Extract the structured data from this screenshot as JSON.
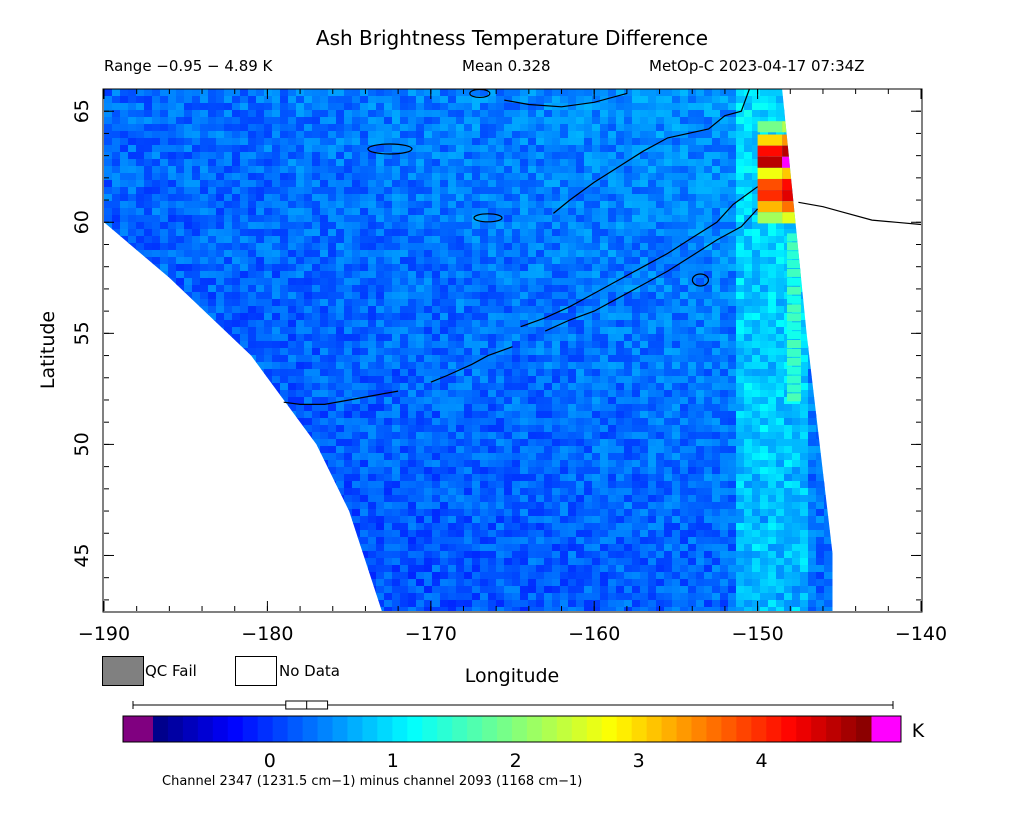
{
  "title": "Ash Brightness Temperature Difference",
  "header": {
    "range": "Range −0.95 − 4.89 K",
    "mean": "Mean 0.328",
    "satellite": "MetOp-C 2023-04-17 07:34Z"
  },
  "legend": {
    "qc_fail": "QC Fail",
    "no_data": "No Data",
    "qc_fail_color": "#808080",
    "no_data_color": "#ffffff"
  },
  "colorbar": {
    "unit": "K",
    "caption": "Channel 2347 (1231.5 cm−1) minus channel 2093 (1168 cm−1)",
    "tick_values": [
      0,
      1,
      2,
      3,
      4
    ],
    "tick_labels": [
      "0",
      "1",
      "2",
      "3",
      "4"
    ],
    "range": [
      -0.95,
      4.89
    ],
    "under_color": "#800080",
    "over_color": "#ff00ff",
    "boxplot": {
      "whisker_low": -0.95,
      "q1": 0.13,
      "median": 0.3,
      "q3": 0.47,
      "whisker_high": 4.89
    }
  },
  "chart_data": {
    "type": "heatmap",
    "title": "Ash Brightness Temperature Difference",
    "xlabel": "Longitude",
    "ylabel": "Latitude",
    "xlim": [
      -190,
      -140
    ],
    "ylim": [
      42.5,
      66
    ],
    "x_ticks": [
      -190,
      -180,
      -170,
      -160,
      -150,
      -140
    ],
    "x_tick_labels": [
      "−190",
      "−180",
      "−170",
      "−160",
      "−150",
      "−140"
    ],
    "y_ticks": [
      45,
      50,
      55,
      60,
      65
    ],
    "y_tick_labels": [
      "45",
      "50",
      "55",
      "60",
      "65"
    ],
    "value_range": [
      -0.95,
      4.89
    ],
    "mean": 0.328,
    "units": "K",
    "swath_edges": {
      "west_lon_at_lat": [
        [
          -190,
          60
        ],
        [
          -186,
          57.5
        ],
        [
          -181,
          54
        ],
        [
          -177,
          50
        ],
        [
          -175,
          47
        ],
        [
          -173,
          42.5
        ]
      ],
      "east_lon_at_lat": [
        [
          -148.5,
          66
        ],
        [
          -147,
          55
        ],
        [
          -145,
          42.5
        ]
      ]
    },
    "hotspot_column": {
      "lon": [
        -150,
        -147
      ],
      "lat": [
        59.5,
        64.5
      ],
      "values": [
        {
          "lat": 64.3,
          "value": 2.3
        },
        {
          "lat": 63.7,
          "value": 3.4
        },
        {
          "lat": 63.2,
          "value": 4.6
        },
        {
          "lat": 62.7,
          "value": 5.0
        },
        {
          "lat": 62.2,
          "value": 3.1
        },
        {
          "lat": 61.7,
          "value": 4.2
        },
        {
          "lat": 61.2,
          "value": 4.4
        },
        {
          "lat": 60.7,
          "value": 3.6
        },
        {
          "lat": 60.2,
          "value": 2.6
        }
      ]
    },
    "background_typical_value": 0.3
  }
}
